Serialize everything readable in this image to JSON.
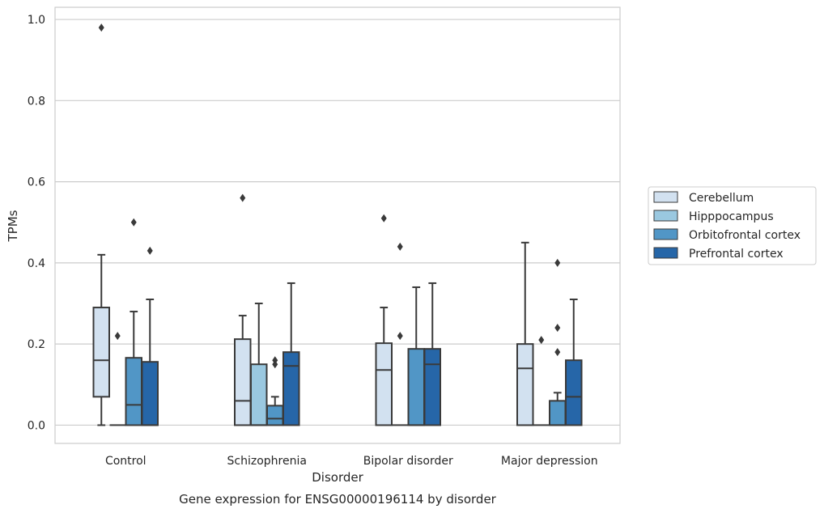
{
  "chart_data": {
    "type": "box",
    "title": "",
    "caption": "Gene expression for ENSG00000196114 by disorder",
    "xlabel": "Disorder",
    "ylabel": "TPMs",
    "ylim": [
      -0.045,
      1.03
    ],
    "yticks": [
      0.0,
      0.2,
      0.4,
      0.6,
      0.8,
      1.0
    ],
    "ytick_labels": [
      "0.0",
      "0.2",
      "0.4",
      "0.6",
      "0.8",
      "1.0"
    ],
    "grid": "horizontal",
    "legend_position": "right",
    "categories": [
      "Control",
      "Schizophrenia",
      "Bipolar disorder",
      "Major depression"
    ],
    "series": [
      {
        "name": "Cerebellum",
        "color": "#d2e1f0",
        "boxes": [
          {
            "whislo": 0.0,
            "q1": 0.07,
            "med": 0.16,
            "q3": 0.29,
            "whishi": 0.42,
            "fliers": [
              0.98
            ]
          },
          {
            "whislo": 0.0,
            "q1": 0.0,
            "med": 0.06,
            "q3": 0.212,
            "whishi": 0.27,
            "fliers": [
              0.56
            ]
          },
          {
            "whislo": 0.0,
            "q1": 0.0,
            "med": 0.136,
            "q3": 0.202,
            "whishi": 0.29,
            "fliers": [
              0.51
            ]
          },
          {
            "whislo": 0.0,
            "q1": 0.0,
            "med": 0.14,
            "q3": 0.2,
            "whishi": 0.45,
            "fliers": []
          }
        ]
      },
      {
        "name": "Hipppocampus",
        "color": "#9ac8e0",
        "boxes": [
          {
            "whislo": 0.0,
            "q1": 0.0,
            "med": 0.0,
            "q3": 0.0,
            "whishi": 0.0,
            "fliers": [
              0.22
            ]
          },
          {
            "whislo": 0.0,
            "q1": 0.0,
            "med": 0.0,
            "q3": 0.15,
            "whishi": 0.3,
            "fliers": []
          },
          {
            "whislo": 0.0,
            "q1": 0.0,
            "med": 0.0,
            "q3": 0.0,
            "whishi": 0.0,
            "fliers": [
              0.44,
              0.22
            ]
          },
          {
            "whislo": 0.0,
            "q1": 0.0,
            "med": 0.0,
            "q3": 0.0,
            "whishi": 0.0,
            "fliers": [
              0.21
            ]
          }
        ]
      },
      {
        "name": "Orbitofrontal cortex",
        "color": "#5196c6",
        "boxes": [
          {
            "whislo": 0.0,
            "q1": 0.0,
            "med": 0.05,
            "q3": 0.166,
            "whishi": 0.28,
            "fliers": [
              0.5
            ]
          },
          {
            "whislo": 0.0,
            "q1": 0.0,
            "med": 0.016,
            "q3": 0.048,
            "whishi": 0.07,
            "fliers": [
              0.16,
              0.15
            ]
          },
          {
            "whislo": 0.0,
            "q1": 0.0,
            "med": 0.0,
            "q3": 0.188,
            "whishi": 0.34,
            "fliers": []
          },
          {
            "whislo": 0.0,
            "q1": 0.0,
            "med": 0.0,
            "q3": 0.06,
            "whishi": 0.08,
            "fliers": [
              0.4,
              0.24,
              0.18
            ]
          }
        ]
      },
      {
        "name": "Prefrontal cortex",
        "color": "#2666a8",
        "boxes": [
          {
            "whislo": 0.0,
            "q1": 0.0,
            "med": 0.0,
            "q3": 0.156,
            "whishi": 0.31,
            "fliers": [
              0.43
            ]
          },
          {
            "whislo": 0.0,
            "q1": 0.0,
            "med": 0.146,
            "q3": 0.18,
            "whishi": 0.35,
            "fliers": []
          },
          {
            "whislo": 0.0,
            "q1": 0.0,
            "med": 0.15,
            "q3": 0.188,
            "whishi": 0.35,
            "fliers": []
          },
          {
            "whislo": 0.0,
            "q1": 0.0,
            "med": 0.07,
            "q3": 0.16,
            "whishi": 0.31,
            "fliers": []
          }
        ]
      }
    ]
  }
}
